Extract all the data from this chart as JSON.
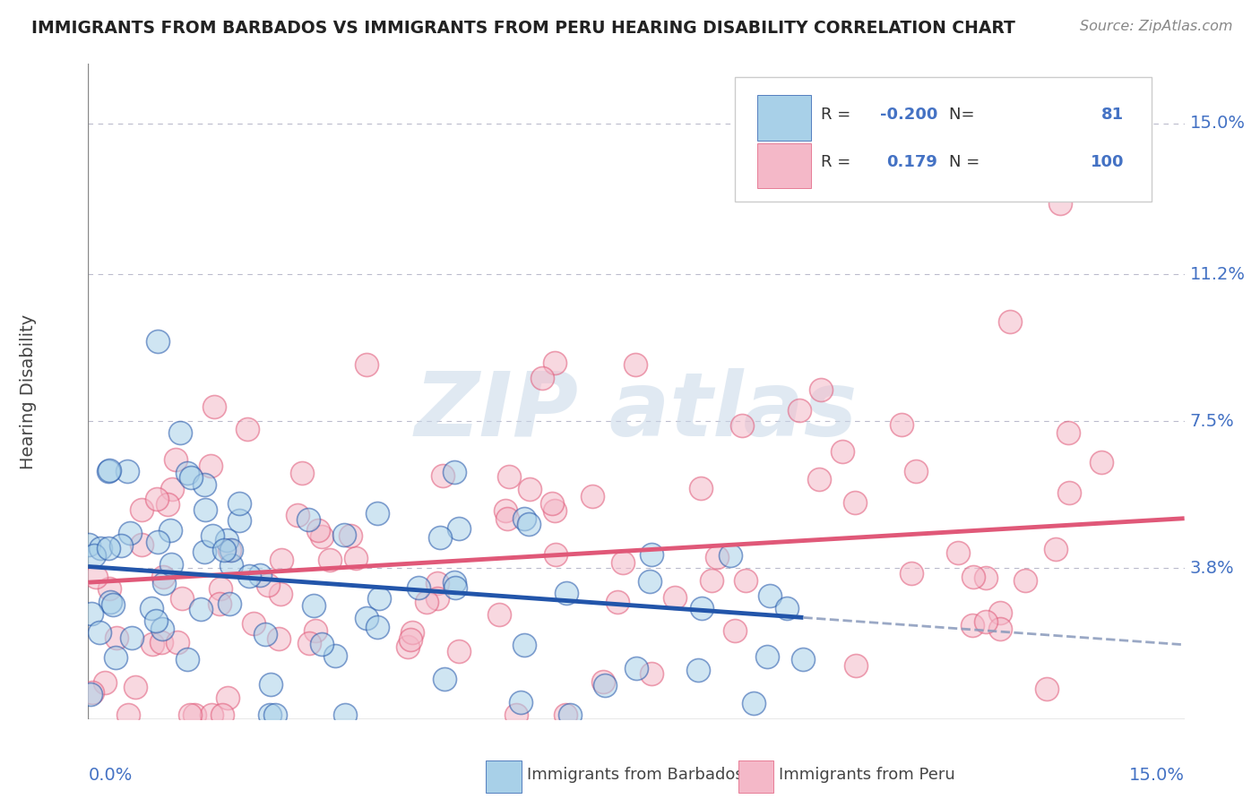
{
  "title": "IMMIGRANTS FROM BARBADOS VS IMMIGRANTS FROM PERU HEARING DISABILITY CORRELATION CHART",
  "source": "Source: ZipAtlas.com",
  "ylabel": "Hearing Disability",
  "color_barbados": "#a8d0e8",
  "color_peru": "#f4b8c8",
  "color_barbados_line": "#2255aa",
  "color_peru_line": "#e05878",
  "legend_r_barbados": "-0.200",
  "legend_n_barbados": "81",
  "legend_r_peru": "0.179",
  "legend_n_peru": "100",
  "ytick_vals": [
    0.038,
    0.075,
    0.112,
    0.15
  ],
  "ytick_labels": [
    "3.8%",
    "7.5%",
    "11.2%",
    "15.0%"
  ],
  "xmin": 0.0,
  "xmax": 0.15,
  "ymin": 0.0,
  "ymax": 0.165,
  "watermark_text": "ZIPatlas"
}
